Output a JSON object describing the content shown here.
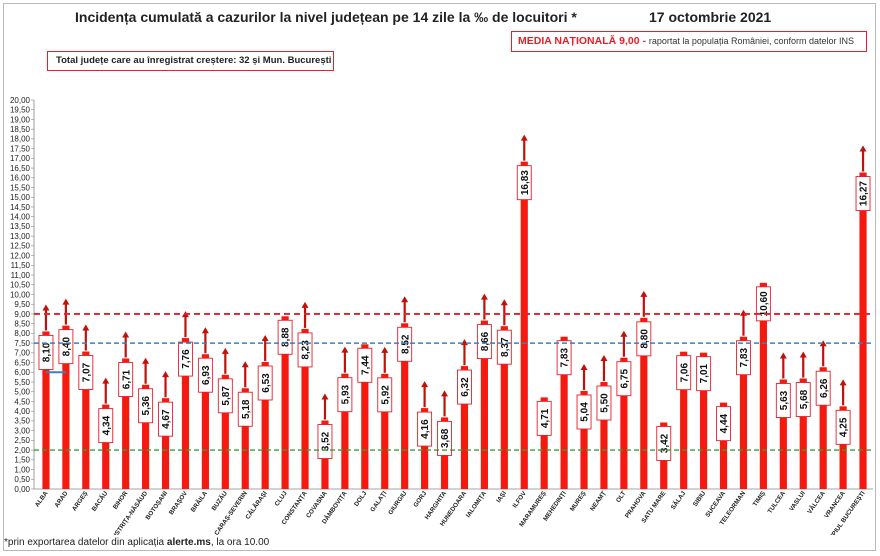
{
  "title": "Incidența cumulată a cazurilor la nivel județean pe 14 zile la ‰ de locuitori *",
  "date": "17 octombrie 2021",
  "media_box": {
    "label": "MEDIA NAȚIONALĂ",
    "value": "9,00",
    "note": "raportat la populația României, conform datelor INS"
  },
  "total_box": "Total județe care au înregistrat creștere:  32 și Mun. București",
  "footnote": {
    "prefix": "*prin exportarea datelor din aplicația ",
    "source": "alerte.ms",
    "suffix": ", la ora 10.00"
  },
  "colors": {
    "bar": "#f51a0f",
    "arrow": "#c0110b",
    "red_line": "#e5202a",
    "blue_line": "#3d7fc1",
    "green_line": "#3a9a3a"
  },
  "chart_data": {
    "type": "bar",
    "ylim": [
      0,
      20
    ],
    "yticks": [
      "0,00",
      "0,50",
      "1,00",
      "1,50",
      "2,00",
      "2,50",
      "3,00",
      "3,50",
      "4,00",
      "4,50",
      "5,00",
      "5,50",
      "6,00",
      "6,50",
      "7,00",
      "7,50",
      "8,00",
      "8,50",
      "9,00",
      "9,50",
      "10,00",
      "10,50",
      "11,00",
      "11,50",
      "12,00",
      "12,50",
      "13,00",
      "13,50",
      "14,00",
      "14,50",
      "15,00",
      "15,50",
      "16,00",
      "16,50",
      "17,00",
      "17,50",
      "18,00",
      "18,50",
      "19,00",
      "19,50",
      "20,00"
    ],
    "categories": [
      "ALBA",
      "ARAD",
      "ARGEȘ",
      "BACĂU",
      "BIHOR",
      "BISTRIȚA-NĂSĂUD",
      "BOTOȘANI",
      "BRAȘOV",
      "BRĂILA",
      "BUZĂU",
      "CARAȘ-SEVERIN",
      "CĂLĂRAȘI",
      "CLUJ",
      "CONSTANȚA",
      "COVASNA",
      "DÂMBOVIȚA",
      "DOLJ",
      "GALAȚI",
      "GIURGIU",
      "GORJ",
      "HARGHITA",
      "HUNEDOARA",
      "IALOMIȚA",
      "IAȘI",
      "ILFOV",
      "MARAMUREȘ",
      "MEHEDINȚI",
      "MUREȘ",
      "NEAMȚ",
      "OLT",
      "PRAHOVA",
      "SATU MARE",
      "SĂLAJ",
      "SIBIU",
      "SUCEAVA",
      "TELEORMAN",
      "TIMIȘ",
      "TULCEA",
      "VASLUI",
      "VÂLCEA",
      "VRANCEA",
      "MUNICIPIUL BUCUREȘTI"
    ],
    "values": [
      8.1,
      8.4,
      7.07,
      4.34,
      6.71,
      5.36,
      4.67,
      7.76,
      6.93,
      5.87,
      5.18,
      6.53,
      8.88,
      8.23,
      3.52,
      5.93,
      7.44,
      5.92,
      8.52,
      4.16,
      3.68,
      6.32,
      8.66,
      8.37,
      16.83,
      4.71,
      7.83,
      5.04,
      5.5,
      6.75,
      8.8,
      3.42,
      7.06,
      7.01,
      4.44,
      7.83,
      10.6,
      5.63,
      5.68,
      6.26,
      4.25,
      16.27
    ],
    "labels": [
      "8,10",
      "8,40",
      "7,07",
      "4,34",
      "6,71",
      "5,36",
      "4,67",
      "7,76",
      "6,93",
      "5,87",
      "5,18",
      "6,53",
      "8,88",
      "8,23",
      "3,52",
      "5,93",
      "7,44",
      "5,92",
      "8,52",
      "4,16",
      "3,68",
      "6,32",
      "8,66",
      "8,37",
      "16,83",
      "4,71",
      "7,83",
      "5,04",
      "5,50",
      "6,75",
      "8,80",
      "3,42",
      "7,06",
      "7,01",
      "4,44",
      "7,83",
      "10,60",
      "5,63",
      "5,68",
      "6,26",
      "4,25",
      "16,27"
    ],
    "increase": [
      true,
      true,
      true,
      true,
      true,
      true,
      true,
      true,
      true,
      true,
      true,
      true,
      false,
      true,
      true,
      true,
      false,
      true,
      true,
      true,
      true,
      true,
      true,
      true,
      true,
      false,
      false,
      true,
      true,
      true,
      true,
      false,
      false,
      false,
      false,
      true,
      false,
      true,
      true,
      true,
      true,
      true
    ],
    "reference_lines": [
      {
        "value": 9.0,
        "style": "dashed",
        "color": "red"
      },
      {
        "value": 7.5,
        "style": "dashed",
        "color": "blue"
      },
      {
        "value": 2.0,
        "style": "dashed",
        "color": "green"
      }
    ],
    "marker": {
      "value": 6.0,
      "color": "blue"
    },
    "grid": false,
    "legend": "none"
  }
}
